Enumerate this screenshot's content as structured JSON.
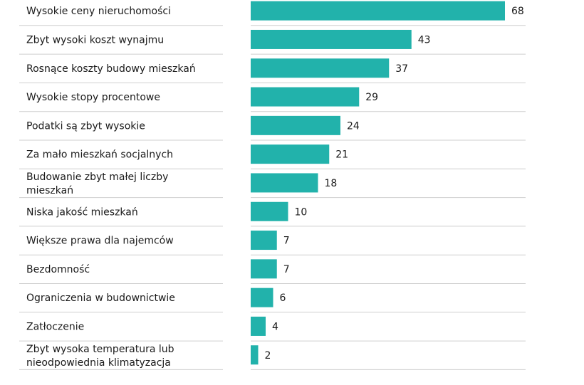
{
  "chart_data": {
    "type": "bar",
    "orientation": "horizontal",
    "title": "",
    "xlabel": "",
    "ylabel": "",
    "xlim": [
      0,
      68
    ],
    "bar_color": "#22b2ab",
    "grid": false,
    "legend": "none",
    "categories": [
      "Wysokie ceny nieruchomości",
      "Zbyt wysoki koszt wynajmu",
      "Rosnące koszty budowy mieszkań",
      "Wysokie stopy procentowe",
      "Podatki są zbyt wysokie",
      "Za mało mieszkań socjalnych",
      "Budowanie zbyt małej liczby mieszkań",
      "Niska jakość mieszkań",
      "Większe prawa dla najemców",
      "Bezdomność",
      "Ograniczenia w budownictwie",
      "Zatłoczenie",
      "Zbyt wysoka temperatura lub nieodpowiednia klimatyzacja"
    ],
    "values": [
      68,
      43,
      37,
      29,
      24,
      21,
      18,
      10,
      7,
      7,
      6,
      4,
      2
    ]
  }
}
